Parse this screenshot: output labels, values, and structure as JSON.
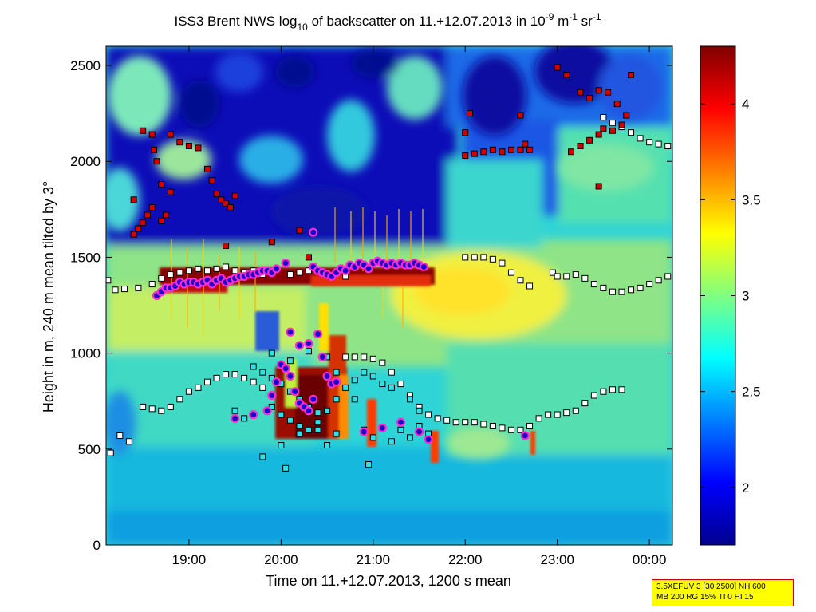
{
  "chart_data": {
    "type": "heatmap",
    "title": {
      "p1": "ISS3 Brent NWS log",
      "sub": "10",
      "p2": " of backscatter on 11.+12.07.2013 in 10",
      "sup1": "-9",
      "p3": " m",
      "sup2": "-1",
      "p4": " sr",
      "sup3": "-1"
    },
    "xlabel": "Time on 11.+12.07.2013, 1200 s mean",
    "ylabel": "Height in m, 240 m mean tilted by 3°",
    "x_range_hours": [
      18.1,
      24.25
    ],
    "ylim": [
      0,
      2600
    ],
    "x_ticks": [
      {
        "value": 19,
        "label": "19:00"
      },
      {
        "value": 20,
        "label": "20:00"
      },
      {
        "value": 21,
        "label": "21:00"
      },
      {
        "value": 22,
        "label": "22:00"
      },
      {
        "value": 23,
        "label": "23:00"
      },
      {
        "value": 24,
        "label": "00:00"
      }
    ],
    "y_ticks": [
      0,
      500,
      1000,
      1500,
      2000,
      2500
    ],
    "colorbar": {
      "range": [
        1.7,
        4.3
      ],
      "ticks": [
        "2",
        "2.5",
        "3",
        "3.5",
        "4"
      ],
      "colormap": "jet"
    },
    "grid": false,
    "series": [
      {
        "marker": "square-black",
        "points": [
          [
            18.12,
            1380
          ],
          [
            18.2,
            1330
          ],
          [
            18.3,
            1335
          ],
          [
            18.45,
            1340
          ],
          [
            18.6,
            1360
          ],
          [
            18.7,
            1390
          ],
          [
            18.8,
            1410
          ],
          [
            18.9,
            1420
          ],
          [
            19.0,
            1430
          ],
          [
            19.1,
            1440
          ],
          [
            19.2,
            1430
          ],
          [
            19.3,
            1440
          ],
          [
            19.4,
            1450
          ],
          [
            19.5,
            1430
          ],
          [
            19.6,
            1420
          ],
          [
            19.7,
            1430
          ],
          [
            19.8,
            1410
          ],
          [
            20.1,
            1410
          ],
          [
            20.2,
            1420
          ],
          [
            20.3,
            1430
          ],
          [
            20.5,
            1410
          ],
          [
            20.7,
            1400
          ],
          [
            22.0,
            1500
          ],
          [
            22.1,
            1500
          ],
          [
            22.2,
            1500
          ],
          [
            22.3,
            1490
          ],
          [
            22.4,
            1470
          ],
          [
            22.5,
            1420
          ],
          [
            22.6,
            1380
          ],
          [
            22.7,
            1350
          ],
          [
            22.95,
            1420
          ],
          [
            23.0,
            1400
          ],
          [
            23.1,
            1400
          ],
          [
            23.2,
            1410
          ],
          [
            23.3,
            1390
          ],
          [
            23.4,
            1360
          ],
          [
            23.5,
            1340
          ],
          [
            23.6,
            1320
          ],
          [
            23.7,
            1320
          ],
          [
            23.8,
            1330
          ],
          [
            23.9,
            1340
          ],
          [
            24.0,
            1360
          ],
          [
            24.1,
            1380
          ],
          [
            24.2,
            1400
          ],
          [
            18.5,
            720
          ],
          [
            18.6,
            710
          ],
          [
            18.7,
            700
          ],
          [
            18.8,
            720
          ],
          [
            18.9,
            760
          ],
          [
            19.0,
            800
          ],
          [
            19.1,
            820
          ],
          [
            19.2,
            850
          ],
          [
            19.3,
            870
          ],
          [
            19.4,
            890
          ],
          [
            19.5,
            890
          ],
          [
            19.6,
            870
          ],
          [
            19.7,
            850
          ],
          [
            19.8,
            820
          ],
          [
            19.9,
            780
          ],
          [
            20.7,
            980
          ],
          [
            20.8,
            980
          ],
          [
            20.9,
            980
          ],
          [
            21.0,
            970
          ],
          [
            21.1,
            950
          ],
          [
            21.2,
            900
          ],
          [
            21.3,
            840
          ],
          [
            21.4,
            780
          ],
          [
            21.5,
            720
          ],
          [
            21.6,
            680
          ],
          [
            21.7,
            660
          ],
          [
            21.8,
            650
          ],
          [
            21.9,
            640
          ],
          [
            22.0,
            640
          ],
          [
            22.1,
            640
          ],
          [
            22.2,
            630
          ],
          [
            22.3,
            620
          ],
          [
            22.4,
            610
          ],
          [
            22.5,
            600
          ],
          [
            22.6,
            600
          ],
          [
            22.7,
            620
          ],
          [
            22.8,
            660
          ],
          [
            22.9,
            680
          ],
          [
            23.0,
            680
          ],
          [
            23.1,
            690
          ],
          [
            23.2,
            700
          ],
          [
            23.3,
            740
          ],
          [
            23.4,
            780
          ],
          [
            23.5,
            800
          ],
          [
            23.6,
            810
          ],
          [
            23.7,
            810
          ],
          [
            23.5,
            2230
          ],
          [
            23.6,
            2200
          ],
          [
            23.7,
            2180
          ],
          [
            23.8,
            2150
          ],
          [
            23.9,
            2120
          ],
          [
            24.0,
            2100
          ],
          [
            24.1,
            2090
          ],
          [
            24.2,
            2080
          ],
          [
            18.35,
            540
          ],
          [
            18.25,
            570
          ],
          [
            18.15,
            480
          ]
        ]
      },
      {
        "marker": "square-red",
        "points": [
          [
            18.4,
            1620
          ],
          [
            18.45,
            1650
          ],
          [
            18.5,
            1680
          ],
          [
            18.55,
            1720
          ],
          [
            18.6,
            1760
          ],
          [
            18.7,
            1690
          ],
          [
            18.75,
            1720
          ],
          [
            18.8,
            1840
          ],
          [
            18.9,
            2100
          ],
          [
            19.0,
            2080
          ],
          [
            19.1,
            2070
          ],
          [
            19.2,
            1960
          ],
          [
            19.25,
            1900
          ],
          [
            19.3,
            1830
          ],
          [
            19.35,
            1800
          ],
          [
            19.4,
            1780
          ],
          [
            19.45,
            1760
          ],
          [
            19.5,
            1820
          ],
          [
            19.4,
            1560
          ],
          [
            18.5,
            2160
          ],
          [
            18.6,
            2140
          ],
          [
            18.62,
            2060
          ],
          [
            18.8,
            2140
          ],
          [
            18.65,
            2000
          ],
          [
            18.7,
            1880
          ],
          [
            18.4,
            1800
          ],
          [
            22.0,
            2030
          ],
          [
            22.1,
            2040
          ],
          [
            22.2,
            2050
          ],
          [
            22.3,
            2060
          ],
          [
            22.4,
            2050
          ],
          [
            22.5,
            2060
          ],
          [
            22.6,
            2060
          ],
          [
            22.7,
            2060
          ],
          [
            22.65,
            2090
          ],
          [
            22.6,
            2240
          ],
          [
            22.05,
            2250
          ],
          [
            22.0,
            2150
          ],
          [
            23.15,
            2050
          ],
          [
            23.25,
            2080
          ],
          [
            23.35,
            2110
          ],
          [
            23.45,
            2140
          ],
          [
            23.5,
            2170
          ],
          [
            23.6,
            2160
          ],
          [
            23.7,
            2190
          ],
          [
            23.75,
            2240
          ],
          [
            23.65,
            2300
          ],
          [
            23.55,
            2360
          ],
          [
            23.45,
            2370
          ],
          [
            23.35,
            2330
          ],
          [
            23.25,
            2360
          ],
          [
            23.0,
            2490
          ],
          [
            23.1,
            2450
          ],
          [
            23.45,
            1870
          ],
          [
            23.8,
            2450
          ],
          [
            20.2,
            1640
          ],
          [
            20.3,
            1500
          ],
          [
            19.9,
            1580
          ]
        ]
      },
      {
        "marker": "square-cyan",
        "points": [
          [
            19.7,
            930
          ],
          [
            19.8,
            900
          ],
          [
            19.9,
            870
          ],
          [
            20.0,
            840
          ],
          [
            20.1,
            800
          ],
          [
            20.2,
            760
          ],
          [
            20.3,
            720
          ],
          [
            20.4,
            690
          ],
          [
            19.9,
            720
          ],
          [
            20.0,
            680
          ],
          [
            20.1,
            650
          ],
          [
            20.2,
            620
          ],
          [
            20.3,
            600
          ],
          [
            20.4,
            640
          ],
          [
            20.5,
            700
          ],
          [
            20.6,
            760
          ],
          [
            20.7,
            820
          ],
          [
            20.8,
            860
          ],
          [
            19.8,
            460
          ],
          [
            20.0,
            520
          ],
          [
            20.2,
            580
          ],
          [
            20.4,
            600
          ],
          [
            20.5,
            520
          ],
          [
            20.6,
            580
          ],
          [
            20.9,
            600
          ],
          [
            21.0,
            560
          ],
          [
            21.2,
            540
          ],
          [
            21.3,
            600
          ],
          [
            21.4,
            560
          ],
          [
            21.5,
            620
          ],
          [
            21.6,
            580
          ],
          [
            19.9,
            1000
          ],
          [
            20.1,
            960
          ],
          [
            20.3,
            1010
          ],
          [
            20.5,
            980
          ],
          [
            20.6,
            900
          ],
          [
            20.9,
            900
          ],
          [
            21.0,
            880
          ],
          [
            21.2,
            820
          ],
          [
            21.4,
            760
          ],
          [
            21.5,
            700
          ],
          [
            19.6,
            660
          ],
          [
            19.5,
            700
          ],
          [
            20.8,
            760
          ],
          [
            21.1,
            840
          ],
          [
            20.95,
            420
          ],
          [
            20.05,
            400
          ]
        ]
      },
      {
        "marker": "circle-magenta",
        "points": [
          [
            18.65,
            1300
          ],
          [
            18.7,
            1320
          ],
          [
            18.75,
            1340
          ],
          [
            18.8,
            1340
          ],
          [
            18.85,
            1350
          ],
          [
            18.9,
            1370
          ],
          [
            18.95,
            1360
          ],
          [
            19.0,
            1370
          ],
          [
            19.05,
            1370
          ],
          [
            19.1,
            1360
          ],
          [
            19.15,
            1370
          ],
          [
            19.2,
            1380
          ],
          [
            19.25,
            1360
          ],
          [
            19.3,
            1380
          ],
          [
            19.35,
            1390
          ],
          [
            19.4,
            1370
          ],
          [
            19.45,
            1380
          ],
          [
            19.5,
            1390
          ],
          [
            19.55,
            1400
          ],
          [
            19.6,
            1400
          ],
          [
            19.65,
            1410
          ],
          [
            19.7,
            1410
          ],
          [
            19.75,
            1420
          ],
          [
            19.8,
            1430
          ],
          [
            19.85,
            1430
          ],
          [
            19.9,
            1420
          ],
          [
            19.95,
            1440
          ],
          [
            20.05,
            1470
          ],
          [
            20.35,
            1450
          ],
          [
            20.4,
            1430
          ],
          [
            20.45,
            1420
          ],
          [
            20.5,
            1410
          ],
          [
            20.55,
            1400
          ],
          [
            20.6,
            1420
          ],
          [
            20.65,
            1440
          ],
          [
            20.7,
            1430
          ],
          [
            20.75,
            1460
          ],
          [
            20.8,
            1450
          ],
          [
            20.85,
            1470
          ],
          [
            20.9,
            1460
          ],
          [
            20.95,
            1440
          ],
          [
            21.0,
            1470
          ],
          [
            21.05,
            1480
          ],
          [
            21.1,
            1470
          ],
          [
            21.15,
            1460
          ],
          [
            21.2,
            1470
          ],
          [
            21.25,
            1460
          ],
          [
            21.3,
            1470
          ],
          [
            21.35,
            1460
          ],
          [
            21.4,
            1460
          ],
          [
            21.45,
            1470
          ],
          [
            21.5,
            1460
          ],
          [
            21.55,
            1450
          ],
          [
            20.35,
            1630
          ],
          [
            19.5,
            660
          ],
          [
            19.7,
            680
          ],
          [
            19.85,
            700
          ],
          [
            19.9,
            780
          ],
          [
            19.95,
            850
          ],
          [
            20.0,
            940
          ],
          [
            20.05,
            920
          ],
          [
            20.1,
            880
          ],
          [
            20.15,
            800
          ],
          [
            20.2,
            740
          ],
          [
            20.25,
            720
          ],
          [
            20.3,
            700
          ],
          [
            20.35,
            760
          ],
          [
            20.4,
            1100
          ],
          [
            20.45,
            980
          ],
          [
            20.5,
            880
          ],
          [
            20.55,
            840
          ],
          [
            20.6,
            850
          ],
          [
            20.3,
            1050
          ],
          [
            20.1,
            1110
          ],
          [
            20.2,
            1040
          ],
          [
            20.9,
            590
          ],
          [
            21.1,
            610
          ],
          [
            21.3,
            640
          ],
          [
            21.5,
            590
          ],
          [
            21.6,
            550
          ],
          [
            22.65,
            570
          ]
        ]
      }
    ]
  },
  "info_box": {
    "line1": "3.5XEFUV 3 [30 2500] NH 600",
    "line2": "MB 200 RG 15% TI 0 HI 15"
  }
}
